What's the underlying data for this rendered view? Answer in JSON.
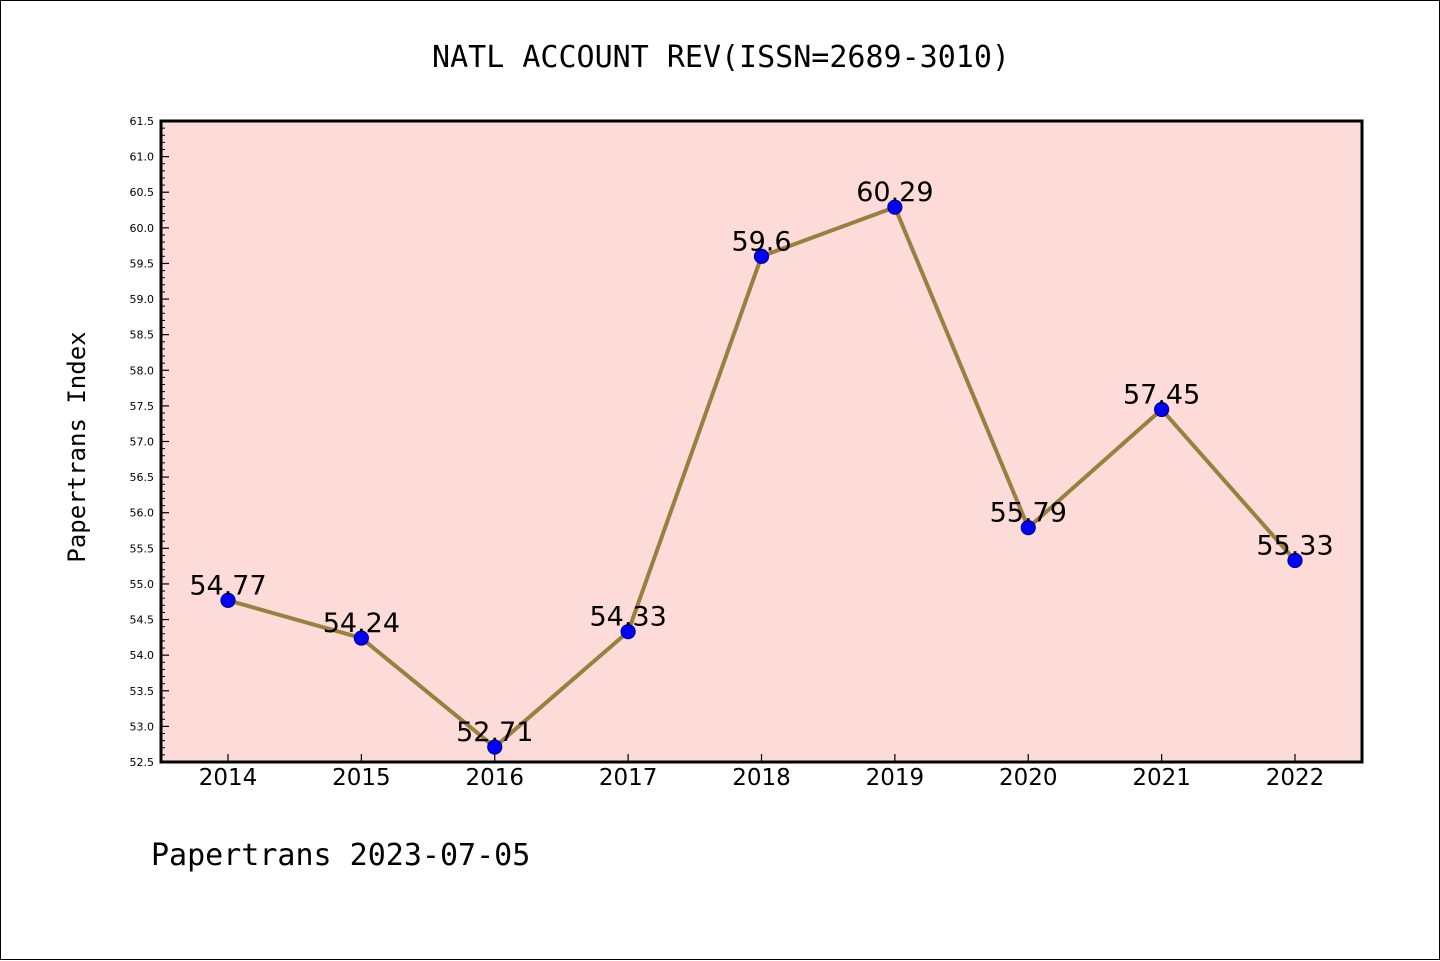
{
  "footer": "Papertrans 2023-07-05",
  "chart_data": {
    "type": "line",
    "title": "NATL ACCOUNT REV(ISSN=2689-3010)",
    "xlabel": "",
    "ylabel": "Papertrans Index",
    "categories": [
      "2014",
      "2015",
      "2016",
      "2017",
      "2018",
      "2019",
      "2020",
      "2021",
      "2022"
    ],
    "values": [
      54.77,
      54.24,
      52.71,
      54.33,
      59.6,
      60.29,
      55.79,
      57.45,
      55.33
    ],
    "data_labels": [
      "54.77",
      "54.24",
      "52.71",
      "54.33",
      "59.6",
      "60.29",
      "55.79",
      "57.45",
      "55.33"
    ],
    "ylim": [
      52.5,
      61.5
    ],
    "yticks": [
      "52.5",
      "53.0",
      "53.5",
      "54.0",
      "54.5",
      "55.0",
      "55.5",
      "56.0",
      "56.5",
      "57.0",
      "57.5",
      "58.0",
      "58.5",
      "59.0",
      "59.5",
      "60.0",
      "60.5",
      "61.0",
      "61.5"
    ],
    "grid": false,
    "legend": "none",
    "colors": {
      "plot_background": "#fddbd8",
      "line": "#9a7f3e",
      "marker_fill": "#0000ff",
      "marker_edge": "#00008b"
    }
  }
}
